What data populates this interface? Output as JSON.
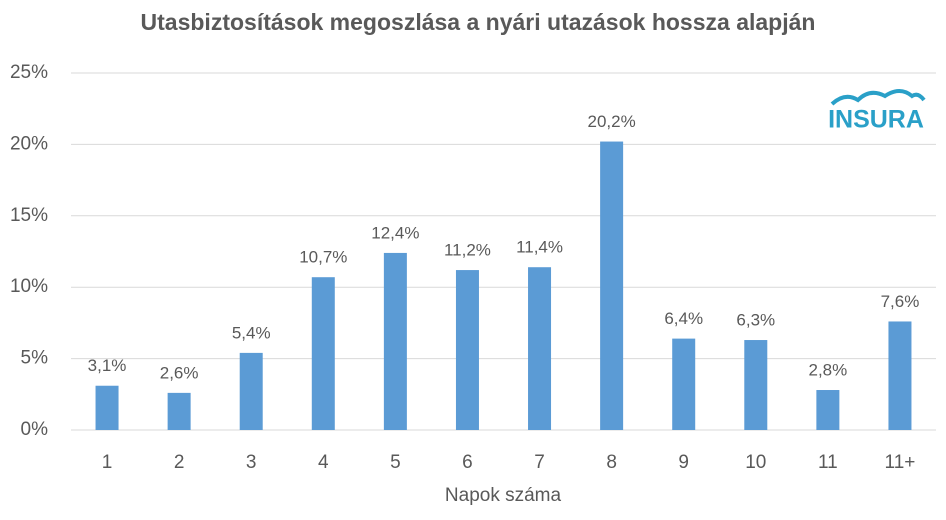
{
  "chart_data": {
    "type": "bar",
    "title": "Utasbiztosítások megoszlása a nyári utazások hossza alapján",
    "x_label": "Napok száma",
    "logo": "INSURA",
    "categories": [
      "1",
      "2",
      "3",
      "4",
      "5",
      "6",
      "7",
      "8",
      "9",
      "10",
      "11",
      "11+"
    ],
    "values": [
      3.1,
      2.6,
      5.4,
      10.7,
      12.4,
      11.2,
      11.4,
      20.2,
      6.4,
      6.3,
      2.8,
      7.6
    ],
    "value_labels": [
      "3,1%",
      "2,6%",
      "5,4%",
      "10,7%",
      "12,4%",
      "11,2%",
      "11,4%",
      "20,2%",
      "6,4%",
      "6,3%",
      "2,8%",
      "7,6%"
    ],
    "color": "#5b9bd5",
    "ylim": [
      0,
      25
    ],
    "yticks": [
      {
        "value": 0,
        "label": "0%"
      },
      {
        "value": 5,
        "label": "5%"
      },
      {
        "value": 10,
        "label": "10%"
      },
      {
        "value": 15,
        "label": "15%"
      },
      {
        "value": 20,
        "label": "20%"
      },
      {
        "value": 25,
        "label": "25%"
      }
    ],
    "grid": true
  }
}
